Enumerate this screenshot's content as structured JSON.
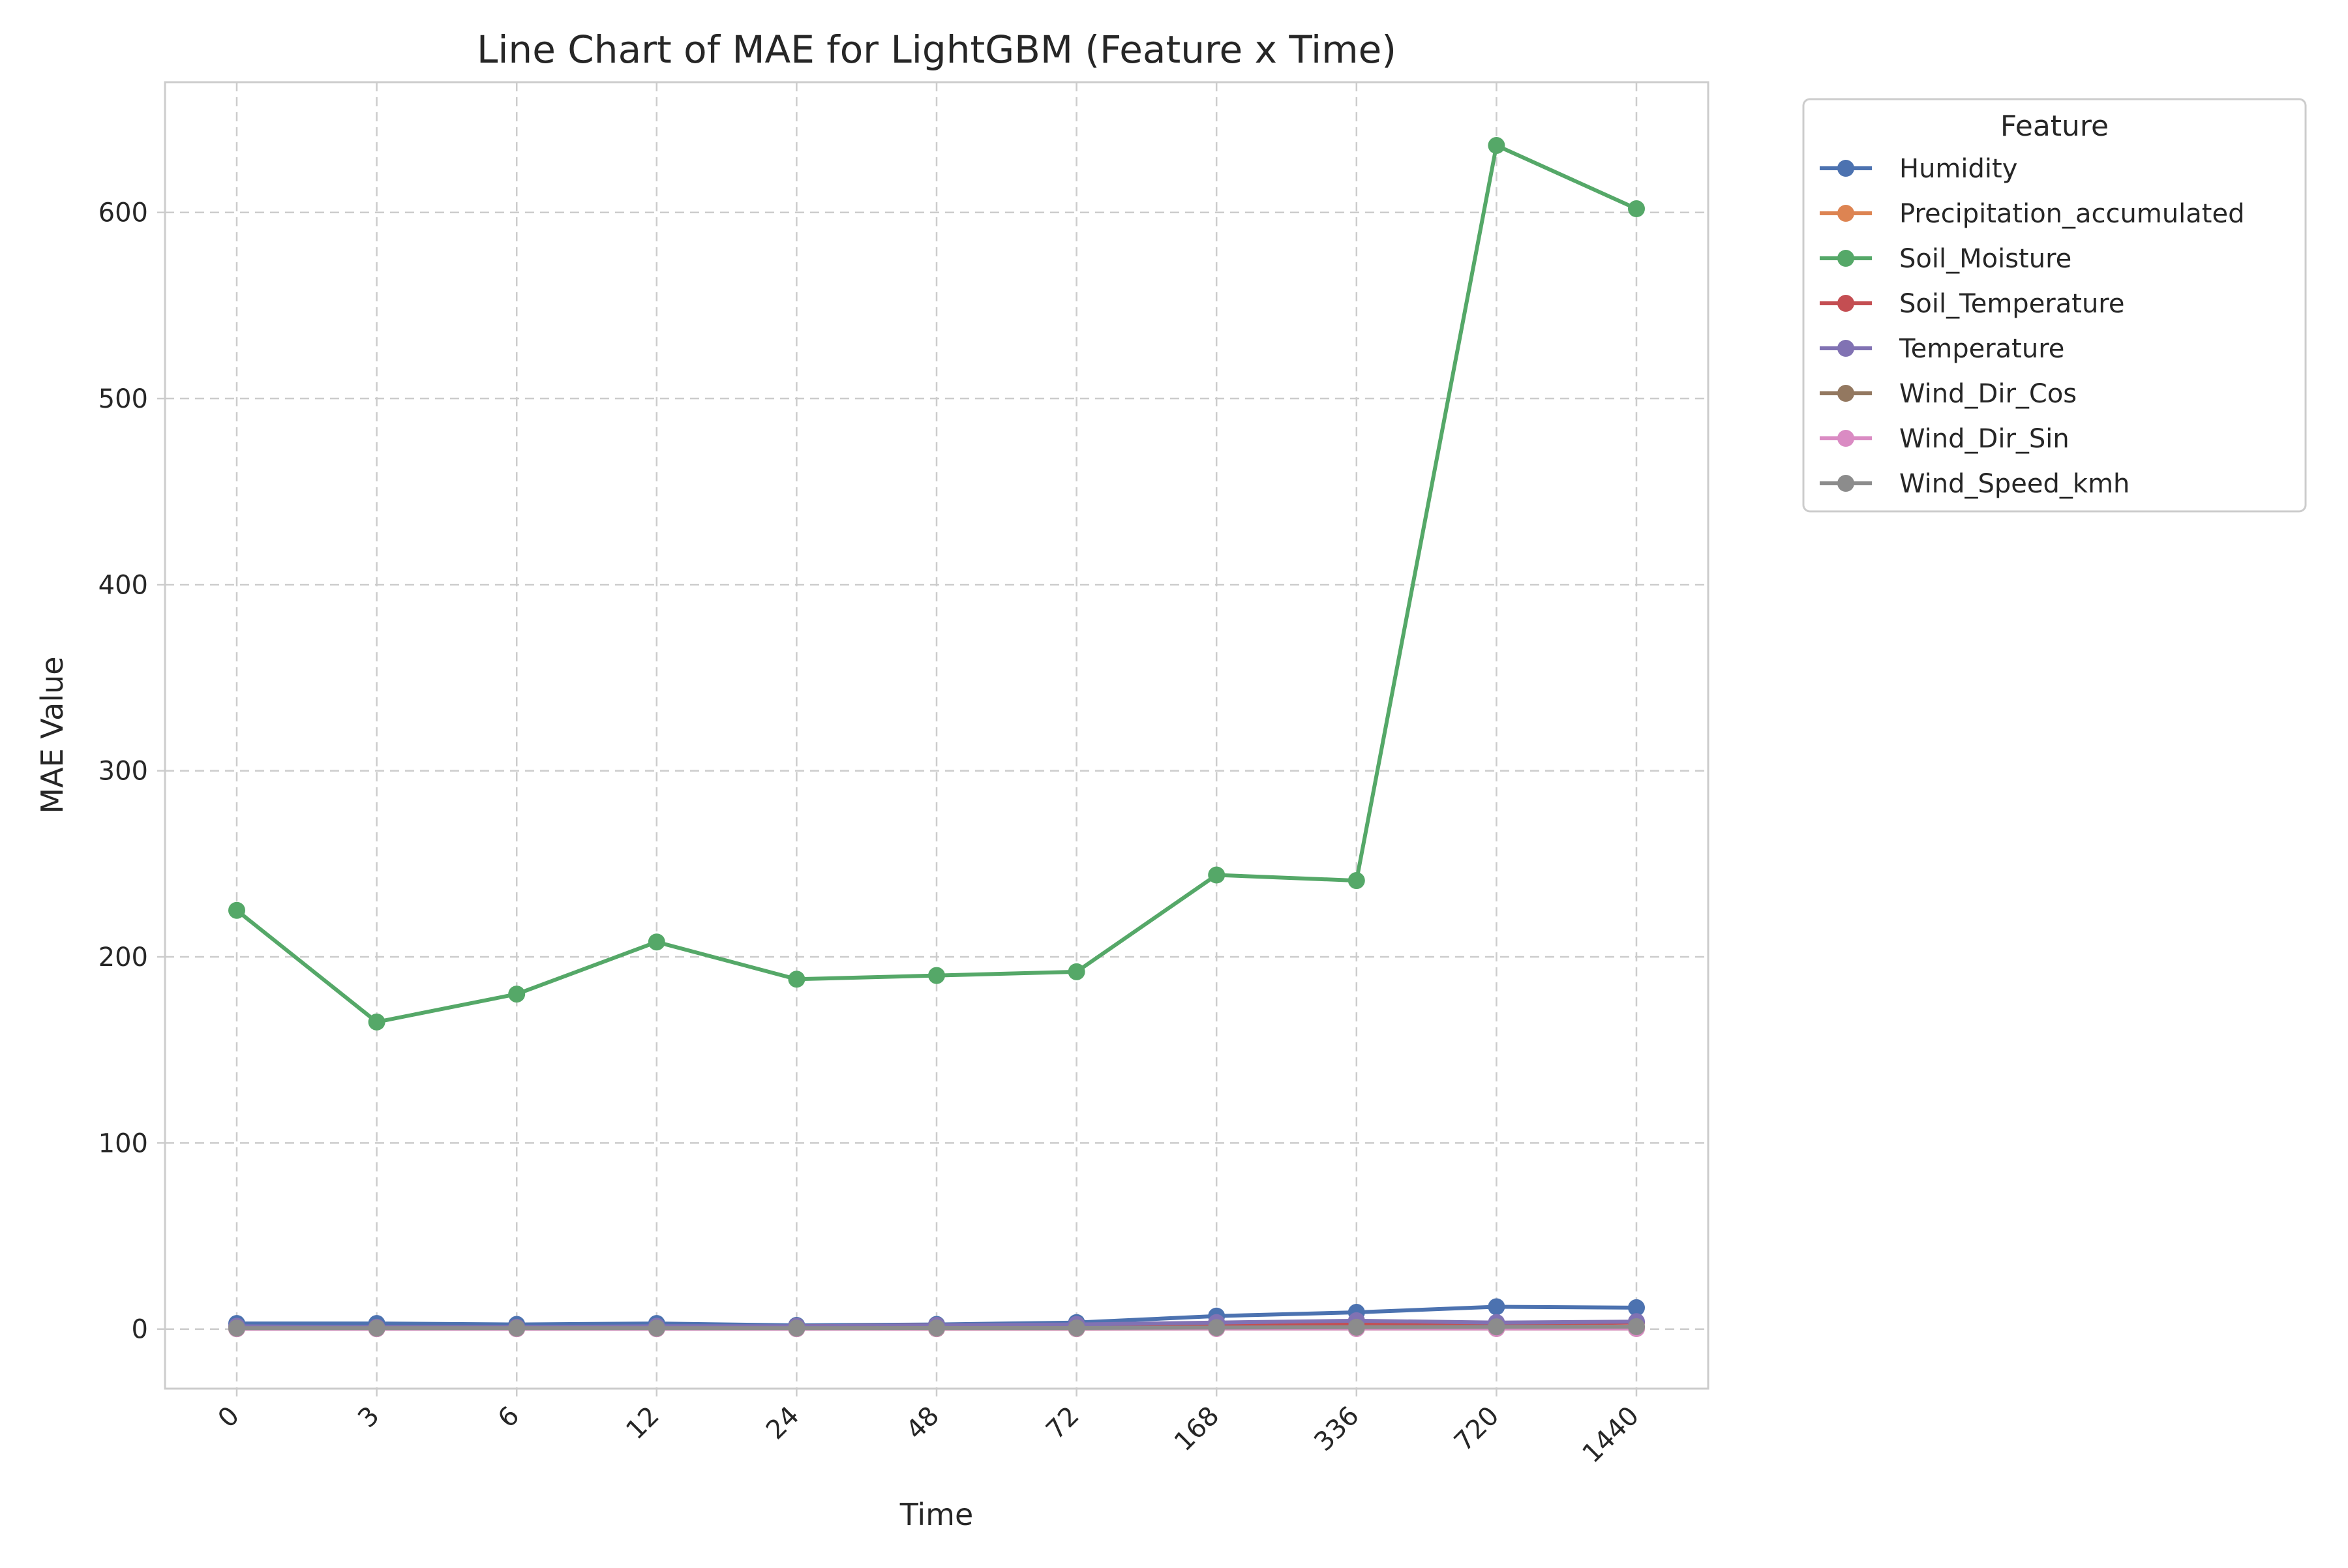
{
  "chart_data": {
    "type": "line",
    "title": "Line Chart of MAE for LightGBM (Feature x Time)",
    "xlabel": "Time",
    "ylabel": "MAE Value",
    "x": [
      "0",
      "3",
      "6",
      "12",
      "24",
      "48",
      "72",
      "168",
      "336",
      "720",
      "1440"
    ],
    "x_scale": "categorical",
    "ylim": [
      -32,
      670
    ],
    "yticks": [
      0,
      100,
      200,
      300,
      400,
      500,
      600
    ],
    "grid": true,
    "legend": {
      "title": "Feature",
      "placement": "outside-top-right"
    },
    "series": [
      {
        "name": "Humidity",
        "color": "#4c72b0",
        "values": [
          3.0,
          3.0,
          2.5,
          3.0,
          2.0,
          2.5,
          3.5,
          7.0,
          9.0,
          12.0,
          11.5
        ]
      },
      {
        "name": "Precipitation_accumulated",
        "color": "#dd8452",
        "values": [
          0.5,
          0.4,
          0.4,
          0.4,
          0.4,
          0.4,
          0.4,
          0.6,
          0.8,
          1.0,
          1.0
        ]
      },
      {
        "name": "Soil_Moisture",
        "color": "#55a868",
        "values": [
          225,
          165,
          180,
          208,
          188,
          190,
          192,
          244,
          241,
          636,
          602
        ]
      },
      {
        "name": "Soil_Temperature",
        "color": "#c44e52",
        "values": [
          1.0,
          1.0,
          1.0,
          1.0,
          1.5,
          2.0,
          2.0,
          2.5,
          3.0,
          3.0,
          3.5
        ]
      },
      {
        "name": "Temperature",
        "color": "#8172b3",
        "values": [
          1.5,
          1.0,
          1.0,
          1.5,
          1.5,
          2.0,
          2.5,
          3.5,
          4.5,
          3.5,
          4.0
        ]
      },
      {
        "name": "Wind_Dir_Cos",
        "color": "#937860",
        "values": [
          0.2,
          0.2,
          0.2,
          0.2,
          0.2,
          0.2,
          0.2,
          0.3,
          0.3,
          0.3,
          0.3
        ]
      },
      {
        "name": "Wind_Dir_Sin",
        "color": "#da8bc3",
        "values": [
          0.2,
          0.2,
          0.2,
          0.2,
          0.2,
          0.3,
          0.3,
          0.3,
          0.3,
          0.3,
          0.3
        ]
      },
      {
        "name": "Wind_Speed_kmh",
        "color": "#8c8c8c",
        "values": [
          0.5,
          0.5,
          0.5,
          0.5,
          0.5,
          0.6,
          0.6,
          0.8,
          1.0,
          1.2,
          1.3
        ]
      }
    ]
  }
}
